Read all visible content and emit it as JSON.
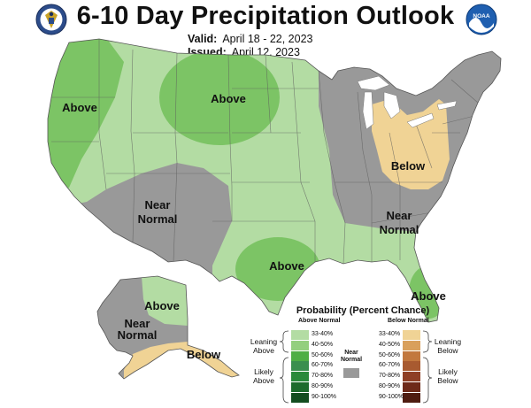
{
  "header": {
    "title": "6-10 Day Precipitation Outlook",
    "valid_label": "Valid:",
    "valid_value": "April 18 - 22, 2023",
    "issued_label": "Issued:",
    "issued_value": "April 12, 2023"
  },
  "map": {
    "labels": {
      "above_northwest": "Above",
      "above_north_plains": "Above",
      "near_normal_southwest_1": "Near",
      "near_normal_southwest_2": "Normal",
      "below_great_lakes": "Below",
      "near_normal_southeast_1": "Near",
      "near_normal_southeast_2": "Normal",
      "above_texas": "Above",
      "above_florida": "Above",
      "above_alaska": "Above",
      "near_normal_alaska_1": "Near",
      "near_normal_alaska_2": "Normal",
      "below_alaska": "Below"
    },
    "colors": {
      "leaning_above": "#b3dca3",
      "likely_above": "#7cc465",
      "near_normal": "#999999",
      "leaning_below": "#f0d395",
      "background": "#ffffff"
    }
  },
  "legend": {
    "title": "Probability (Percent Chance)",
    "above_header": "Above Normal",
    "below_header": "Below Normal",
    "near_normal_1": "Near",
    "near_normal_2": "Normal",
    "leaning_above_1": "Leaning",
    "leaning_above_2": "Above",
    "likely_above_1": "Likely",
    "likely_above_2": "Above",
    "leaning_below_1": "Leaning",
    "leaning_below_2": "Below",
    "likely_below_1": "Likely",
    "likely_below_2": "Below",
    "above_bins": [
      {
        "range": "33-40%",
        "color": "#b3dca3"
      },
      {
        "range": "40-50%",
        "color": "#93cf7e"
      },
      {
        "range": "50-60%",
        "color": "#4fae45"
      },
      {
        "range": "60-70%",
        "color": "#3a8f4e"
      },
      {
        "range": "70-80%",
        "color": "#2a8a3b"
      },
      {
        "range": "80-90%",
        "color": "#1d6b2c"
      },
      {
        "range": "90-100%",
        "color": "#134d1f"
      }
    ],
    "below_bins": [
      {
        "range": "33-40%",
        "color": "#f0d395"
      },
      {
        "range": "40-50%",
        "color": "#d9a05c"
      },
      {
        "range": "50-60%",
        "color": "#c2783e"
      },
      {
        "range": "60-70%",
        "color": "#a85a30"
      },
      {
        "range": "70-80%",
        "color": "#8e3f25"
      },
      {
        "range": "80-90%",
        "color": "#6e2a19"
      },
      {
        "range": "90-100%",
        "color": "#4f1c10"
      }
    ],
    "near_color": "#999999"
  },
  "logos": {
    "left": "commerce-seal-icon",
    "right": "noaa-logo-icon"
  }
}
